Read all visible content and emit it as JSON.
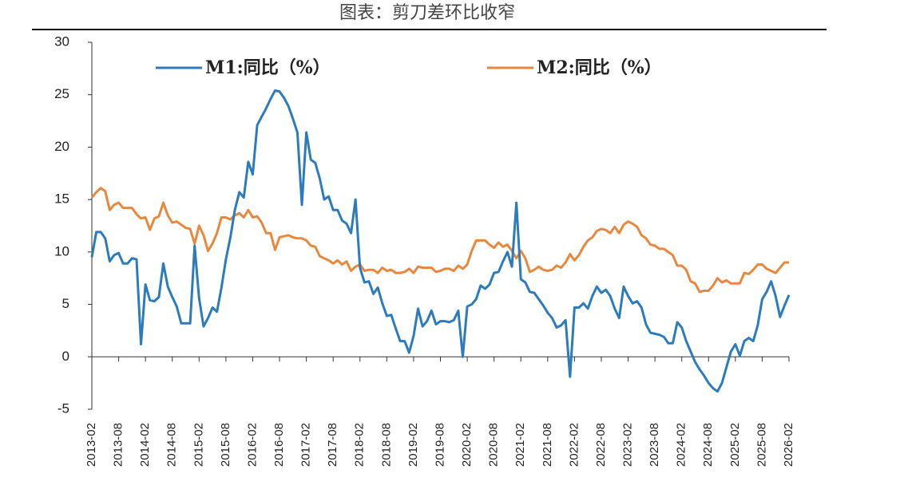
{
  "chart_data": {
    "type": "line",
    "title": "图表：剪刀差环比收窄",
    "categories": [
      "2013-02",
      null,
      null,
      null,
      null,
      null,
      "2013-08",
      null,
      null,
      null,
      null,
      null,
      "2014-02",
      null,
      null,
      null,
      null,
      null,
      "2014-08",
      null,
      null,
      null,
      null,
      null,
      "2015-02",
      null,
      null,
      null,
      null,
      null,
      "2015-08",
      null,
      null,
      null,
      null,
      null,
      "2016-02",
      null,
      null,
      null,
      null,
      null,
      "2016-08",
      null,
      null,
      null,
      null,
      null,
      "2017-02",
      null,
      null,
      null,
      null,
      null,
      "2017-08",
      null,
      null,
      null,
      null,
      null,
      "2018-02",
      null,
      null,
      null,
      null,
      null,
      "2018-08",
      null,
      null,
      null,
      null,
      null,
      "2019-02",
      null,
      null,
      null,
      null,
      null,
      "2019-08",
      null,
      null,
      null,
      null,
      null,
      "2020-02",
      null,
      null,
      null,
      null,
      null,
      "2020-08",
      null,
      null,
      null,
      null,
      null,
      "2021-02",
      null,
      null,
      null,
      null,
      null,
      "2021-08",
      null,
      null,
      null,
      null,
      null,
      "2022-02",
      null,
      null,
      null,
      null,
      null,
      "2022-08",
      null,
      null,
      null,
      null,
      null,
      "2023-02",
      null,
      null,
      null,
      null,
      null,
      "2023-08",
      null,
      null,
      null,
      null,
      null,
      "2024-02",
      null,
      null,
      null,
      null,
      null,
      "2024-08",
      null,
      null,
      null,
      null,
      null,
      "2025-02",
      null,
      null,
      null,
      null,
      null,
      "2025-08",
      null,
      null,
      null,
      null,
      null,
      "2026-02"
    ],
    "series": [
      {
        "name": "M1:同比（%）",
        "color": "#2b7bbd",
        "values": [
          9.5,
          11.9,
          11.9,
          11.3,
          9.1,
          9.7,
          9.9,
          8.9,
          8.9,
          9.4,
          9.3,
          1.2,
          6.9,
          5.4,
          5.3,
          5.7,
          8.9,
          6.7,
          5.7,
          4.8,
          3.2,
          3.2,
          3.2,
          10.6,
          5.6,
          2.9,
          3.7,
          4.7,
          4.3,
          6.6,
          9.3,
          11.4,
          14.0,
          15.7,
          15.2,
          18.6,
          17.4,
          22.1,
          22.9,
          23.7,
          24.6,
          25.4,
          25.3,
          24.7,
          23.9,
          22.7,
          21.4,
          14.5,
          21.4,
          18.8,
          18.5,
          17.0,
          15.0,
          15.3,
          14.0,
          14.0,
          13.0,
          12.7,
          11.8,
          15.0,
          8.5,
          7.1,
          7.2,
          6.0,
          6.6,
          5.1,
          3.9,
          4.0,
          2.7,
          1.5,
          1.5,
          0.4,
          2.0,
          4.6,
          2.9,
          3.4,
          4.4,
          3.1,
          3.4,
          3.4,
          3.3,
          3.5,
          4.4,
          0.0,
          4.8,
          5.0,
          5.5,
          6.8,
          6.5,
          6.9,
          8.0,
          8.1,
          9.1,
          10.0,
          8.6,
          14.7,
          7.4,
          7.1,
          6.2,
          6.1,
          5.5,
          4.9,
          4.2,
          3.7,
          2.8,
          3.0,
          3.5,
          -1.9,
          4.7,
          4.7,
          5.1,
          4.6,
          5.8,
          6.7,
          6.1,
          6.4,
          5.8,
          4.6,
          3.7,
          6.7,
          5.8,
          5.1,
          5.3,
          4.7,
          3.1,
          2.3,
          2.2,
          2.1,
          1.9,
          1.3,
          1.3,
          3.3,
          2.8,
          1.5,
          0.5,
          -0.5,
          -1.2,
          -1.8,
          -2.5,
          -3.0,
          -3.3,
          -2.5,
          -1.0,
          0.5,
          1.2,
          0.1,
          1.5,
          1.8,
          1.5,
          3.0,
          5.5,
          6.2,
          7.2,
          5.8,
          3.8,
          4.9,
          5.9
        ]
      },
      {
        "name": "M2:同比（%）",
        "color": "#e8883e",
        "values": [
          15.2,
          15.7,
          16.1,
          15.8,
          14.0,
          14.5,
          14.7,
          14.2,
          14.2,
          14.2,
          13.6,
          13.2,
          13.3,
          12.1,
          13.2,
          13.4,
          14.7,
          13.5,
          12.8,
          12.9,
          12.6,
          12.3,
          12.2,
          10.8,
          12.5,
          11.6,
          10.1,
          10.8,
          11.8,
          13.3,
          13.3,
          13.1,
          13.5,
          13.7,
          13.3,
          14.0,
          13.3,
          13.4,
          12.8,
          11.8,
          11.8,
          10.2,
          11.4,
          11.5,
          11.6,
          11.4,
          11.3,
          11.3,
          11.1,
          10.6,
          10.5,
          9.6,
          9.4,
          9.2,
          8.9,
          9.2,
          8.8,
          9.1,
          8.2,
          8.6,
          8.8,
          8.2,
          8.3,
          8.3,
          8.0,
          8.5,
          8.2,
          8.3,
          8.0,
          8.0,
          8.1,
          8.4,
          8.0,
          8.6,
          8.5,
          8.5,
          8.5,
          8.1,
          8.2,
          8.4,
          8.4,
          8.2,
          8.7,
          8.4,
          8.8,
          10.1,
          11.1,
          11.1,
          11.1,
          10.7,
          10.4,
          10.9,
          10.5,
          10.7,
          10.1,
          9.4,
          10.1,
          9.4,
          8.1,
          8.3,
          8.6,
          8.3,
          8.2,
          8.3,
          8.7,
          8.5,
          9.0,
          9.8,
          9.2,
          9.7,
          10.5,
          11.1,
          11.4,
          12.0,
          12.2,
          12.1,
          11.8,
          12.4,
          11.8,
          12.6,
          12.9,
          12.7,
          12.4,
          11.6,
          11.3,
          10.7,
          10.6,
          10.3,
          10.3,
          10.0,
          9.7,
          8.7,
          8.7,
          8.3,
          7.2,
          7.0,
          6.2,
          6.3,
          6.3,
          6.8,
          7.5,
          7.1,
          7.3,
          7.0,
          7.0,
          7.0,
          8.0,
          7.9,
          8.3,
          8.8,
          8.8,
          8.4,
          8.2,
          8.0,
          8.5,
          9.0,
          9.0
        ]
      }
    ],
    "ylim": [
      -5,
      30
    ],
    "yticks": [
      -5,
      0,
      5,
      10,
      15,
      20,
      25,
      30
    ],
    "grid": false
  }
}
